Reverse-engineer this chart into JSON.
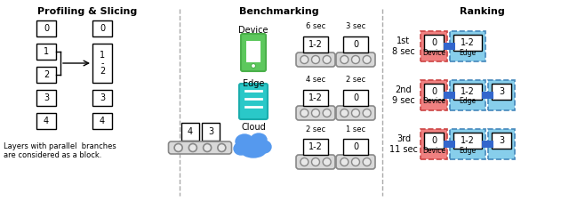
{
  "title_profiling": "Profiling & Slicing",
  "title_benchmarking": "Benchmarking",
  "title_ranking": "Ranking",
  "nodes_left": [
    "0",
    "1",
    "2",
    "3",
    "4"
  ],
  "nodes_right_labels": [
    "0",
    "1\n-\n2",
    "3",
    "4"
  ],
  "footnote": "Layers with parallel  branches\nare considered as a block.",
  "device_label": "Device",
  "edge_label": "Edge",
  "cloud_label": "Cloud",
  "bench_rows": [
    {
      "times": [
        "6 sec",
        "3 sec"
      ],
      "labels": [
        "1-2",
        "0"
      ]
    },
    {
      "times": [
        "4 sec",
        "2 sec"
      ],
      "labels": [
        "1-2",
        "0"
      ]
    },
    {
      "times": [
        "2 sec",
        "1 sec"
      ],
      "labels": [
        "1-2",
        "0"
      ]
    }
  ],
  "rank_rows": [
    {
      "label": "1st\n8 sec",
      "boxes": [
        {
          "t": "0",
          "sub": "Device",
          "color": "red"
        },
        {
          "t": "1-2",
          "sub": "Edge",
          "color": "blue"
        }
      ]
    },
    {
      "label": "2nd\n9 sec",
      "boxes": [
        {
          "t": "0",
          "sub": "Device",
          "color": "red"
        },
        {
          "t": "1-2",
          "sub": "Edge",
          "color": "blue"
        },
        {
          "t": "3",
          "sub": "",
          "color": "blue"
        }
      ]
    },
    {
      "label": "3rd\n11 sec",
      "boxes": [
        {
          "t": "0",
          "sub": "Device",
          "color": "red"
        },
        {
          "t": "1-2",
          "sub": "Edge",
          "color": "blue"
        },
        {
          "t": "3",
          "sub": "",
          "color": "blue"
        }
      ]
    }
  ],
  "color_device_bg": "#F08080",
  "color_edge_bg": "#87CEEB",
  "color_dashed_red": "#CC4444",
  "color_dashed_blue": "#4488BB",
  "color_connector": "#3366CC",
  "bg_color": "#FFFFFF",
  "divider_color": "#AAAAAA"
}
